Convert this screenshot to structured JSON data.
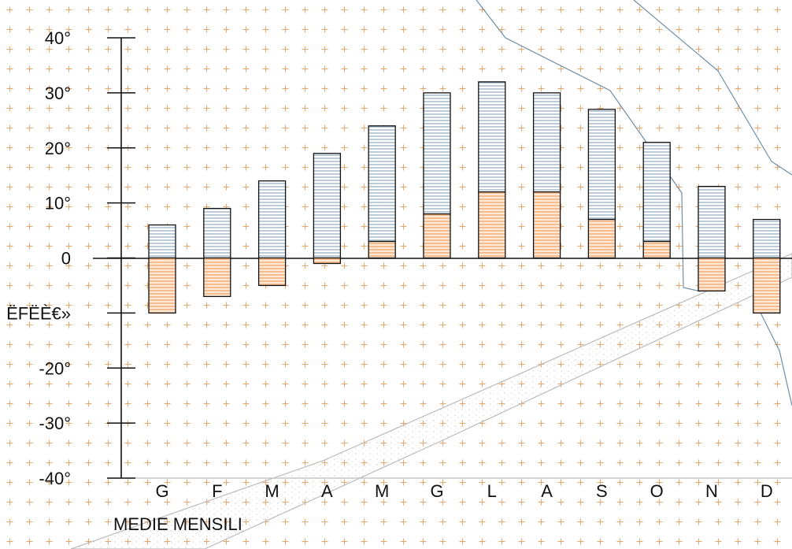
{
  "chart_data": {
    "type": "bar",
    "title": "",
    "caption": "MEDIE MENSILI",
    "categories": [
      "G",
      "F",
      "M",
      "A",
      "M",
      "G",
      "L",
      "A",
      "S",
      "O",
      "N",
      "D"
    ],
    "series": [
      {
        "values": [
          6,
          9,
          14,
          19,
          24,
          30,
          32,
          30,
          27,
          21,
          13,
          7
        ]
      },
      {
        "values": [
          -10,
          -7,
          -5,
          -1,
          3,
          8,
          12,
          12,
          7,
          3,
          -6,
          -10
        ]
      }
    ],
    "y_ticks": [
      "40°",
      "30°",
      "20°",
      "10°",
      "0",
      "ËFËÈ€»",
      "-20°",
      "-30°",
      "-40°"
    ],
    "ylim": [
      -40,
      40
    ],
    "colors": {
      "max_fill": "#9fb6c9",
      "min_fill": "#f4b47c",
      "background_marks": "#e8a66a",
      "map_line": "#6f8fa5",
      "road": "#bdbdbd"
    }
  }
}
